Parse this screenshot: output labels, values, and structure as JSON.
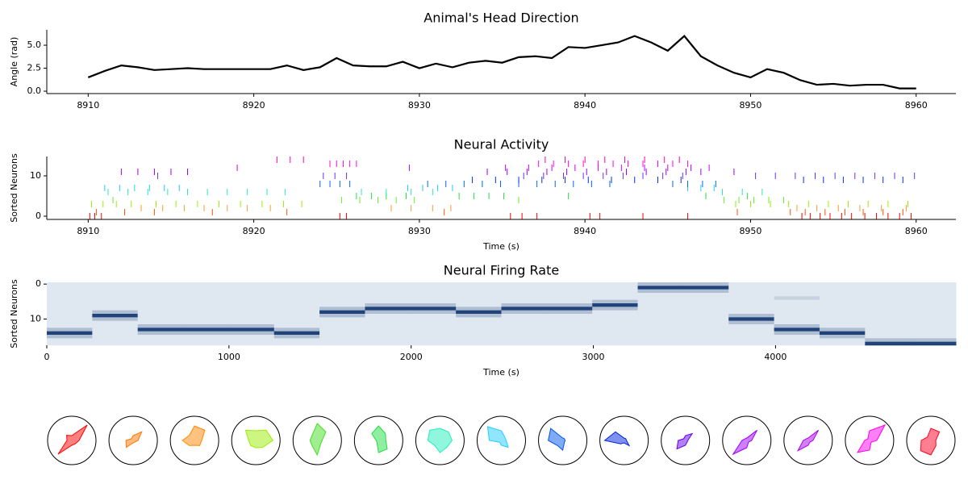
{
  "chart_data": [
    {
      "type": "line",
      "title": "Animal's Head Direction",
      "ylabel": "Angle (rad)",
      "color": "#000000",
      "x": [
        8910,
        8911,
        8912,
        8913,
        8914,
        8915,
        8916,
        8917,
        8918,
        8919,
        8920,
        8921,
        8922,
        8923,
        8924,
        8925,
        8926,
        8927,
        8928,
        8929,
        8930,
        8931,
        8932,
        8933,
        8934,
        8935,
        8936,
        8937,
        8938,
        8939,
        8940,
        8941,
        8942,
        8943,
        8944,
        8945,
        8946,
        8947,
        8948,
        8949,
        8950,
        8951,
        8952,
        8953,
        8954,
        8955,
        8956,
        8957,
        8958,
        8959,
        8960
      ],
      "values": [
        1.5,
        2.2,
        2.8,
        2.6,
        2.3,
        2.4,
        2.5,
        2.4,
        2.4,
        2.4,
        2.4,
        2.4,
        2.8,
        2.3,
        2.6,
        3.6,
        2.8,
        2.7,
        2.7,
        3.2,
        2.5,
        3.0,
        2.6,
        3.1,
        3.3,
        3.1,
        3.7,
        3.8,
        3.6,
        4.8,
        4.7,
        5.0,
        5.3,
        6.0,
        5.3,
        4.4,
        6.0,
        3.8,
        2.8,
        2.0,
        1.5,
        2.4,
        2.0,
        1.2,
        0.7,
        0.8,
        0.6,
        0.7,
        0.7,
        0.3,
        0.3
      ],
      "xlim": [
        8907.5,
        8962.4
      ],
      "xticks": [
        8910,
        8920,
        8930,
        8940,
        8950,
        8960
      ],
      "ylim": [
        -0.26,
        6.67
      ],
      "yticks": [
        {
          "value": 0,
          "label": "0.0"
        },
        2.5,
        {
          "value": 5,
          "label": "5.0"
        }
      ]
    },
    {
      "type": "raster",
      "title": "Neural Activity",
      "ylabel": "Sorted Neurons",
      "xlabel": "Time (s)",
      "xlim": [
        8907.5,
        8962.4
      ],
      "xticks": [
        8910,
        8920,
        8930,
        8940,
        8950,
        8960
      ],
      "ylim": [
        -0.8,
        14.8
      ],
      "yticks": [
        0,
        10
      ],
      "series": [
        {
          "color": "#ff0000",
          "values": [
            8910.1,
            8910.4,
            8910.8,
            8925.2,
            8925.6,
            8935.5,
            8936.2,
            8937.1,
            8940.3,
            8940.9,
            8943.5,
            8946.2,
            8953.1,
            8953.6,
            8954.2,
            8954.8,
            8955.5,
            8956.1,
            8956.9,
            8957.6,
            8958.3,
            8959.0,
            8959.7
          ]
        },
        {
          "color": "#ff5500",
          "values": [
            8910.5,
            8912.2,
            8914.0,
            8917.5,
            8922.0,
            8931.5,
            8949.2,
            8952.4,
            8953.3,
            8954.5,
            8955.7,
            8956.8,
            8958.0,
            8959.2
          ]
        },
        {
          "color": "#ff9933",
          "values": [
            8913.2,
            8914.5,
            8915.8,
            8917.0,
            8918.4,
            8919.6,
            8921.0,
            8928.3,
            8929.5,
            8930.8,
            8931.9,
            8952.8,
            8954.0,
            8955.3,
            8956.6,
            8957.9,
            8959.4
          ]
        },
        {
          "color": "#99ee00",
          "values": [
            8910.2,
            8910.9,
            8911.7,
            8912.6,
            8914.1,
            8915.3,
            8916.6,
            8917.9,
            8919.2,
            8920.5,
            8921.8,
            8922.9,
            8949.1,
            8950.0,
            8951.2,
            8952.3,
            8953.5,
            8954.7,
            8955.9,
            8957.1,
            8958.3,
            8959.5
          ]
        },
        {
          "color": "#66ee33",
          "values": [
            8911.5,
            8925.3,
            8926.4,
            8927.5,
            8928.6,
            8929.7,
            8936.0,
            8948.4,
            8949.3,
            8950.2,
            8951.1,
            8952.0
          ]
        },
        {
          "color": "#22dd44",
          "values": [
            8926.2,
            8927.1,
            8928.0,
            8929.2,
            8932.4,
            8933.3,
            8934.2,
            8935.1,
            8939.0,
            8947.3,
            8949.8
          ]
        },
        {
          "color": "#22eebb",
          "values": [
            8911.2,
            8912.4,
            8913.6,
            8914.8,
            8916.0,
            8917.2,
            8918.4,
            8919.6,
            8920.8,
            8921.9,
            8926.5,
            8928.0,
            8929.5,
            8930.8,
            8948.3,
            8949.5,
            8950.7
          ]
        },
        {
          "color": "#22ccff",
          "values": [
            8911.0,
            8911.9,
            8912.8,
            8913.7,
            8914.6,
            8915.5,
            8929.3,
            8930.2,
            8931.1,
            8932.0,
            8946.2,
            8947.0,
            8947.8
          ]
        },
        {
          "color": "#0066ff",
          "values": [
            8924.0,
            8924.6,
            8925.2,
            8925.8,
            8930.5,
            8931.6,
            8932.7,
            8933.8,
            8934.9,
            8936.0,
            8937.1,
            8938.2,
            8939.3,
            8940.4,
            8941.5,
            8945.3,
            8946.2,
            8947.1,
            8947.9
          ]
        },
        {
          "color": "#0033ee",
          "values": [
            8933.2,
            8934.6,
            8936.0,
            8937.4,
            8938.8,
            8940.2,
            8941.6,
            8943.0,
            8944.4,
            8945.8,
            8953.2,
            8954.4,
            8955.6,
            8956.8,
            8958.0,
            8959.2
          ]
        },
        {
          "color": "#6633ff",
          "values": [
            8914.2,
            8924.2,
            8924.9,
            8925.6,
            8936.3,
            8937.5,
            8938.7,
            8939.9,
            8941.1,
            8942.3,
            8943.5,
            8944.7,
            8945.9,
            8950.3,
            8951.5,
            8952.7,
            8953.9,
            8955.1,
            8956.3,
            8957.5,
            8958.7,
            8959.9
          ]
        },
        {
          "color": "#9900ff",
          "values": [
            8912.0,
            8913.0,
            8914.0,
            8915.0,
            8916.0,
            8934.1,
            8935.3,
            8936.5,
            8937.7,
            8938.9,
            8940.1,
            8941.3,
            8942.5,
            8943.7,
            8944.9,
            8946.1,
            8947.0,
            8949.0
          ]
        },
        {
          "color": "#cc00ff",
          "values": [
            8919.0,
            8929.4,
            8935.2,
            8936.6,
            8938.0,
            8939.4,
            8940.8,
            8942.2,
            8943.6,
            8945.0,
            8946.4,
            8947.5
          ]
        },
        {
          "color": "#ff00ee",
          "values": [
            8924.6,
            8925.0,
            8925.4,
            8925.8,
            8926.2,
            8937.2,
            8938.1,
            8939.0,
            8939.9,
            8940.8,
            8941.7,
            8942.6,
            8943.5,
            8944.4,
            8945.3,
            8946.2
          ]
        },
        {
          "color": "#ff00aa",
          "values": [
            8921.4,
            8922.2,
            8923.0,
            8937.6,
            8938.8,
            8940.0,
            8941.2,
            8942.4,
            8943.6,
            8944.8,
            8945.7
          ]
        }
      ]
    },
    {
      "type": "heatmap",
      "title": "Neural Firing Rate",
      "ylabel": "Sorted Neurons",
      "xlabel": "Time (s)",
      "xlim": [
        0,
        4990
      ],
      "xticks": [
        0,
        1000,
        2000,
        3000,
        4000
      ],
      "ylim": [
        17.5,
        -0.5
      ],
      "yticks": [
        0,
        10
      ],
      "colors": [
        "#f7fbff",
        "#08306b"
      ],
      "values": [
        [
          0.1,
          0.1,
          0.1,
          0.1,
          0.1,
          0.1,
          0.1,
          0.1,
          0.1,
          0.1,
          0.1,
          0.1,
          0.1,
          0.3,
          0.3,
          0.1,
          0.1,
          0.1,
          0.1,
          0.1
        ],
        [
          0.1,
          0.1,
          0.1,
          0.1,
          0.1,
          0.1,
          0.1,
          0.1,
          0.1,
          0.1,
          0.1,
          0.1,
          0.1,
          0.9,
          0.9,
          0.1,
          0.1,
          0.1,
          0.1,
          0.1
        ],
        [
          0.1,
          0.1,
          0.1,
          0.1,
          0.1,
          0.1,
          0.1,
          0.1,
          0.1,
          0.1,
          0.1,
          0.1,
          0.1,
          0.3,
          0.3,
          0.1,
          0.1,
          0.1,
          0.1,
          0.1
        ],
        [
          0.1,
          0.1,
          0.1,
          0.1,
          0.1,
          0.1,
          0.1,
          0.1,
          0.1,
          0.1,
          0.1,
          0.1,
          0.1,
          0.1,
          0.1,
          0.1,
          0.1,
          0.1,
          0.1,
          0.1
        ],
        [
          0.1,
          0.1,
          0.1,
          0.1,
          0.1,
          0.1,
          0.1,
          0.1,
          0.1,
          0.1,
          0.1,
          0.1,
          0.1,
          0.1,
          0.1,
          0.1,
          0.2,
          0.1,
          0.1,
          0.1
        ],
        [
          0.1,
          0.1,
          0.1,
          0.1,
          0.1,
          0.1,
          0.1,
          0.1,
          0.1,
          0.1,
          0.1,
          0.1,
          0.3,
          0.1,
          0.1,
          0.1,
          0.1,
          0.1,
          0.1,
          0.1
        ],
        [
          0.1,
          0.1,
          0.1,
          0.1,
          0.1,
          0.1,
          0.1,
          0.3,
          0.3,
          0.1,
          0.3,
          0.3,
          0.9,
          0.1,
          0.1,
          0.1,
          0.1,
          0.1,
          0.1,
          0.1
        ],
        [
          0.1,
          0.1,
          0.1,
          0.1,
          0.1,
          0.1,
          0.3,
          0.9,
          0.9,
          0.3,
          0.9,
          0.9,
          0.3,
          0.1,
          0.1,
          0.1,
          0.1,
          0.1,
          0.1,
          0.1
        ],
        [
          0.1,
          0.3,
          0.1,
          0.1,
          0.1,
          0.1,
          0.9,
          0.3,
          0.3,
          0.9,
          0.3,
          0.3,
          0.1,
          0.1,
          0.1,
          0.1,
          0.1,
          0.1,
          0.1,
          0.1
        ],
        [
          0.1,
          0.9,
          0.1,
          0.1,
          0.1,
          0.1,
          0.3,
          0.1,
          0.1,
          0.3,
          0.1,
          0.1,
          0.1,
          0.1,
          0.1,
          0.3,
          0.1,
          0.1,
          0.1,
          0.1
        ],
        [
          0.1,
          0.3,
          0.1,
          0.1,
          0.1,
          0.1,
          0.1,
          0.1,
          0.1,
          0.1,
          0.1,
          0.1,
          0.1,
          0.1,
          0.1,
          0.9,
          0.1,
          0.1,
          0.1,
          0.1
        ],
        [
          0.1,
          0.1,
          0.1,
          0.1,
          0.1,
          0.1,
          0.1,
          0.1,
          0.1,
          0.1,
          0.1,
          0.1,
          0.1,
          0.1,
          0.1,
          0.3,
          0.1,
          0.1,
          0.1,
          0.1
        ],
        [
          0.1,
          0.1,
          0.3,
          0.3,
          0.3,
          0.1,
          0.1,
          0.1,
          0.1,
          0.1,
          0.1,
          0.1,
          0.1,
          0.1,
          0.1,
          0.1,
          0.3,
          0.1,
          0.1,
          0.1
        ],
        [
          0.3,
          0.1,
          0.9,
          0.9,
          0.9,
          0.3,
          0.1,
          0.1,
          0.1,
          0.1,
          0.1,
          0.1,
          0.1,
          0.1,
          0.1,
          0.1,
          0.9,
          0.3,
          0.1,
          0.1
        ],
        [
          0.9,
          0.1,
          0.3,
          0.3,
          0.3,
          0.9,
          0.1,
          0.1,
          0.1,
          0.1,
          0.1,
          0.1,
          0.1,
          0.1,
          0.1,
          0.1,
          0.3,
          0.9,
          0.1,
          0.1
        ],
        [
          0.3,
          0.1,
          0.1,
          0.1,
          0.1,
          0.3,
          0.1,
          0.1,
          0.1,
          0.1,
          0.1,
          0.1,
          0.1,
          0.1,
          0.1,
          0.1,
          0.1,
          0.3,
          0.1,
          0.1
        ],
        [
          0.1,
          0.1,
          0.1,
          0.1,
          0.1,
          0.1,
          0.1,
          0.1,
          0.1,
          0.1,
          0.1,
          0.1,
          0.1,
          0.1,
          0.1,
          0.1,
          0.1,
          0.1,
          0.3,
          0.3
        ],
        [
          0.1,
          0.1,
          0.1,
          0.1,
          0.1,
          0.1,
          0.1,
          0.1,
          0.1,
          0.1,
          0.1,
          0.1,
          0.1,
          0.1,
          0.1,
          0.1,
          0.1,
          0.1,
          0.9,
          0.9
        ]
      ]
    },
    {
      "type": "polar",
      "rlim": [
        0,
        1
      ],
      "angles": [
        0,
        45,
        90,
        135,
        180,
        225,
        270,
        315
      ],
      "series": [
        {
          "color": "#ff0000",
          "values": [
            0.3,
            0.9,
            0.2,
            0.3,
            0.2,
            0.8,
            0.2,
            0.2
          ]
        },
        {
          "color": "#ff7700",
          "values": [
            0.2,
            0.5,
            0.2,
            0.1,
            0.3,
            0.4,
            0.1,
            0.1
          ]
        },
        {
          "color": "#ff8800",
          "values": [
            0.3,
            0.6,
            0.6,
            0.3,
            0.5,
            0.3,
            0.2,
            0.3
          ]
        },
        {
          "color": "#99ee00",
          "values": [
            0.7,
            0.6,
            0.4,
            0.6,
            0.3,
            0.3,
            0.3,
            0.4
          ]
        },
        {
          "color": "#44dd22",
          "values": [
            0.2,
            0.5,
            0.7,
            0.3,
            0.3,
            0.3,
            0.6,
            0.2
          ]
        },
        {
          "color": "#22dd44",
          "values": [
            0.3,
            0.4,
            0.6,
            0.4,
            0.1,
            0.1,
            0.5,
            0.5
          ]
        },
        {
          "color": "#22eebb",
          "values": [
            0.5,
            0.5,
            0.5,
            0.6,
            0.5,
            0.3,
            0.5,
            0.4
          ]
        },
        {
          "color": "#22ccff",
          "values": [
            0.2,
            0.2,
            0.4,
            0.8,
            0.5,
            0.1,
            0.2,
            0.4
          ]
        },
        {
          "color": "#0055ee",
          "values": [
            0.1,
            0.1,
            0.1,
            0.7,
            0.6,
            0.3,
            0.4,
            0.1
          ]
        },
        {
          "color": "#0022dd",
          "values": [
            0.1,
            0.1,
            0.1,
            0.5,
            0.8,
            0.2,
            0.1,
            0.3
          ]
        },
        {
          "color": "#6600ee",
          "values": [
            0.1,
            0.4,
            0.2,
            0.1,
            0.3,
            0.5,
            0.2,
            0.1
          ]
        },
        {
          "color": "#9900ff",
          "values": [
            0.2,
            0.6,
            0.1,
            0.1,
            0.2,
            0.8,
            0.3,
            0.1
          ]
        },
        {
          "color": "#aa00ee",
          "values": [
            0.2,
            0.6,
            0.1,
            0.1,
            0.2,
            0.6,
            0.2,
            0.1
          ]
        },
        {
          "color": "#ff00ee",
          "values": [
            0.3,
            0.9,
            0.4,
            0.1,
            0.2,
            0.7,
            0.4,
            0.1
          ]
        },
        {
          "color": "#ff0022",
          "values": [
            0.2,
            0.5,
            0.5,
            0.2,
            0.4,
            0.6,
            0.6,
            0.3
          ]
        }
      ]
    }
  ]
}
